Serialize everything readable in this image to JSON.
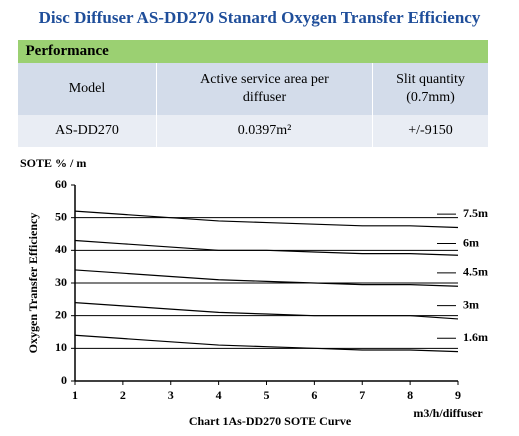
{
  "header": {
    "title": "Disc Diffuser AS-DD270 Stanard Oxygen  Transfer Efficiency"
  },
  "table": {
    "section": "Performance",
    "columns": [
      "Model",
      "Active service area per diffuser",
      "Slit quantity (0.7mm)"
    ],
    "rows": [
      [
        "AS-DD270",
        "0.0397m²",
        "+/-9150"
      ]
    ]
  },
  "chart_data": {
    "type": "line",
    "unit_label": "SOTE % / m",
    "ylabel": "Oxygen Transfer Efficiency",
    "xlabel": "m3/h/diffuser",
    "caption": "Chart 1As-DD270 SOTE Curve",
    "x": [
      1,
      2,
      3,
      4,
      5,
      6,
      7,
      8,
      9
    ],
    "xlim": [
      1,
      9
    ],
    "xticks": [
      1,
      2,
      3,
      4,
      5,
      6,
      7,
      8,
      9
    ],
    "ylim": [
      0,
      60
    ],
    "yticks": [
      0,
      10,
      20,
      30,
      40,
      50,
      60
    ],
    "grid": true,
    "series": [
      {
        "name": "7.5m",
        "color": "#000000",
        "values": [
          52,
          51,
          50,
          49,
          48.5,
          48,
          47.5,
          47.5,
          47
        ]
      },
      {
        "name": "6m",
        "color": "#000000",
        "values": [
          43,
          42,
          41,
          40,
          40,
          39.5,
          39,
          39,
          38.5
        ]
      },
      {
        "name": "4.5m",
        "color": "#000000",
        "values": [
          34,
          33,
          32,
          31,
          30.5,
          30,
          29.5,
          29.5,
          29
        ]
      },
      {
        "name": "3m",
        "color": "#000000",
        "values": [
          24,
          23,
          22,
          21,
          20.5,
          20,
          20,
          20,
          19
        ]
      },
      {
        "name": "1.6m",
        "color": "#000000",
        "values": [
          14,
          13,
          12,
          11,
          10.5,
          10,
          9.5,
          9.5,
          9
        ]
      }
    ]
  }
}
